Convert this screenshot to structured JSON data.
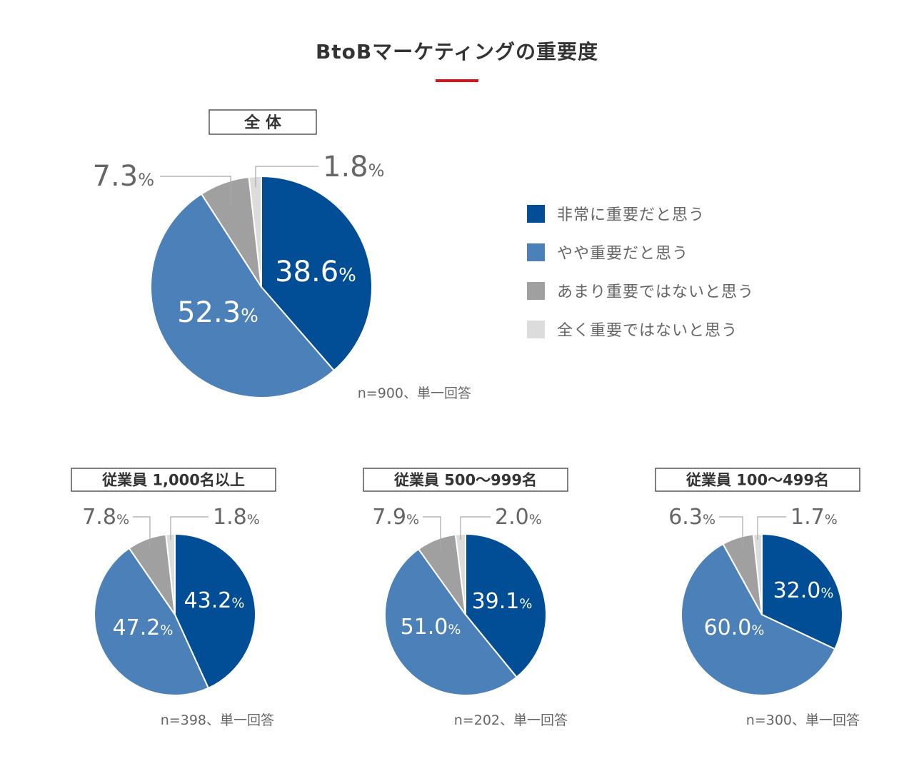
{
  "title": "BtoBマーケティングの重要度",
  "colors": {
    "accent": "#d7141a",
    "very_important": "#014e97",
    "somewhat_important": "#4b80b9",
    "not_very_important": "#a0a0a0",
    "not_at_all_important": "#dcdcdc",
    "text": "#666666"
  },
  "legend": [
    {
      "label": "非常に重要だと思う",
      "color": "#014e97"
    },
    {
      "label": "やや重要だと思う",
      "color": "#4b80b9"
    },
    {
      "label": "あまり重要ではないと思う",
      "color": "#a0a0a0"
    },
    {
      "label": "全く重要ではないと思う",
      "color": "#dcdcdc"
    }
  ],
  "percent_sign": "%",
  "chart_data": [
    {
      "type": "pie",
      "title": "全 体",
      "categories": [
        "非常に重要だと思う",
        "やや重要だと思う",
        "あまり重要ではないと思う",
        "全く重要ではないと思う"
      ],
      "values": [
        38.6,
        52.3,
        7.3,
        1.8
      ],
      "labels": [
        "38.6",
        "52.3",
        "7.3",
        "1.8"
      ],
      "note": "n=900、単一回答"
    },
    {
      "type": "pie",
      "title": "従業員 1,000名以上",
      "categories": [
        "非常に重要だと思う",
        "やや重要だと思う",
        "あまり重要ではないと思う",
        "全く重要ではないと思う"
      ],
      "values": [
        43.2,
        47.2,
        7.8,
        1.8
      ],
      "labels": [
        "43.2",
        "47.2",
        "7.8",
        "1.8"
      ],
      "note": "n=398、単一回答"
    },
    {
      "type": "pie",
      "title": "従業員 500〜999名",
      "categories": [
        "非常に重要だと思う",
        "やや重要だと思う",
        "あまり重要ではないと思う",
        "全く重要ではないと思う"
      ],
      "values": [
        39.1,
        51.0,
        7.9,
        2.0
      ],
      "labels": [
        "39.1",
        "51.0",
        "7.9",
        "2.0"
      ],
      "note": "n=202、単一回答"
    },
    {
      "type": "pie",
      "title": "従業員 100〜499名",
      "categories": [
        "非常に重要だと思う",
        "やや重要だと思う",
        "あまり重要ではないと思う",
        "全く重要ではないと思う"
      ],
      "values": [
        32.0,
        60.0,
        6.3,
        1.7
      ],
      "labels": [
        "32.0",
        "60.0",
        "6.3",
        "1.7"
      ],
      "note": "n=300、単一回答"
    }
  ]
}
